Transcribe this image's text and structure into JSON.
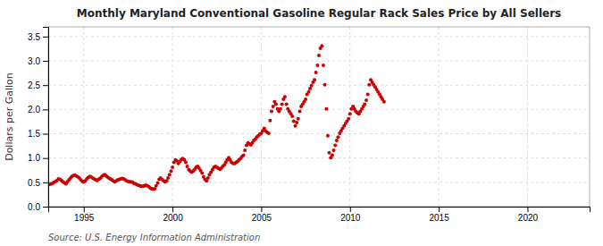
{
  "chart_data": {
    "type": "scatter",
    "title": "Monthly Maryland Conventional Gasoline Regular Rack Sales Price by All Sellers",
    "ylabel": "Dollars per Gallon",
    "source": "Source: U.S. Energy Information Administration",
    "color": "#CC0000",
    "marker": "circle",
    "grid": true,
    "xlim": [
      1993.0,
      2023.5
    ],
    "ylim": [
      0.0,
      3.7
    ],
    "xticks": [
      1995,
      2000,
      2005,
      2010,
      2015,
      2020
    ],
    "yticks": [
      {
        "value": 0.0,
        "label": "0.0"
      },
      0.5,
      {
        "value": 1.0,
        "label": "1.0"
      },
      1.5,
      {
        "value": 2.0,
        "label": "2.0"
      },
      2.5,
      {
        "value": 3.0,
        "label": "3.0"
      },
      3.5
    ],
    "x": [
      1993.08,
      1993.17,
      1993.25,
      1993.33,
      1993.42,
      1993.5,
      1993.58,
      1993.67,
      1993.75,
      1993.83,
      1993.92,
      1994.0,
      1994.08,
      1994.17,
      1994.25,
      1994.33,
      1994.42,
      1994.5,
      1994.58,
      1994.67,
      1994.75,
      1994.83,
      1994.92,
      1995.0,
      1995.08,
      1995.17,
      1995.25,
      1995.33,
      1995.42,
      1995.5,
      1995.58,
      1995.67,
      1995.75,
      1995.83,
      1995.92,
      1996.0,
      1996.08,
      1996.17,
      1996.25,
      1996.33,
      1996.42,
      1996.5,
      1996.58,
      1996.67,
      1996.75,
      1996.83,
      1996.92,
      1997.0,
      1997.08,
      1997.17,
      1997.25,
      1997.33,
      1997.42,
      1997.5,
      1997.58,
      1997.67,
      1997.75,
      1997.83,
      1997.92,
      1998.0,
      1998.08,
      1998.17,
      1998.25,
      1998.33,
      1998.42,
      1998.5,
      1998.58,
      1998.67,
      1998.75,
      1998.83,
      1998.92,
      1999.0,
      1999.08,
      1999.17,
      1999.25,
      1999.33,
      1999.42,
      1999.5,
      1999.58,
      1999.67,
      1999.75,
      1999.83,
      1999.92,
      2000.0,
      2000.08,
      2000.17,
      2000.25,
      2000.33,
      2000.42,
      2000.5,
      2000.58,
      2000.67,
      2000.75,
      2000.83,
      2000.92,
      2001.0,
      2001.08,
      2001.17,
      2001.25,
      2001.33,
      2001.42,
      2001.5,
      2001.58,
      2001.67,
      2001.75,
      2001.83,
      2001.92,
      2002.0,
      2002.08,
      2002.17,
      2002.25,
      2002.33,
      2002.42,
      2002.5,
      2002.58,
      2002.67,
      2002.75,
      2002.83,
      2002.92,
      2003.0,
      2003.08,
      2003.17,
      2003.25,
      2003.33,
      2003.42,
      2003.5,
      2003.58,
      2003.67,
      2003.75,
      2003.83,
      2003.92,
      2004.0,
      2004.08,
      2004.17,
      2004.25,
      2004.33,
      2004.42,
      2004.5,
      2004.58,
      2004.67,
      2004.75,
      2004.83,
      2004.92,
      2005.0,
      2005.08,
      2005.17,
      2005.25,
      2005.33,
      2005.42,
      2005.5,
      2005.58,
      2005.67,
      2005.75,
      2005.83,
      2005.92,
      2006.0,
      2006.08,
      2006.17,
      2006.25,
      2006.33,
      2006.42,
      2006.5,
      2006.58,
      2006.67,
      2006.75,
      2006.83,
      2006.92,
      2007.0,
      2007.08,
      2007.17,
      2007.25,
      2007.33,
      2007.42,
      2007.5,
      2007.58,
      2007.67,
      2007.75,
      2007.83,
      2007.92,
      2008.0,
      2008.08,
      2008.17,
      2008.25,
      2008.33,
      2008.42,
      2008.5,
      2008.58,
      2008.67,
      2008.75,
      2008.83,
      2008.92,
      2009.0,
      2009.08,
      2009.17,
      2009.25,
      2009.33,
      2009.42,
      2009.5,
      2009.58,
      2009.67,
      2009.75,
      2009.83,
      2009.92,
      2010.0,
      2010.08,
      2010.17,
      2010.25,
      2010.33,
      2010.42,
      2010.5,
      2010.58,
      2010.67,
      2010.75,
      2010.83,
      2010.92,
      2011.0,
      2011.08,
      2011.17,
      2011.25,
      2011.33,
      2011.42,
      2011.5,
      2011.58,
      2011.67,
      2011.75,
      2011.83,
      2011.92
    ],
    "values": [
      0.46,
      0.47,
      0.48,
      0.5,
      0.52,
      0.54,
      0.57,
      0.56,
      0.54,
      0.51,
      0.49,
      0.47,
      0.51,
      0.55,
      0.59,
      0.62,
      0.64,
      0.65,
      0.63,
      0.61,
      0.59,
      0.55,
      0.52,
      0.51,
      0.53,
      0.57,
      0.6,
      0.62,
      0.61,
      0.59,
      0.57,
      0.55,
      0.54,
      0.56,
      0.58,
      0.61,
      0.64,
      0.66,
      0.64,
      0.61,
      0.59,
      0.57,
      0.55,
      0.53,
      0.51,
      0.53,
      0.55,
      0.56,
      0.57,
      0.58,
      0.57,
      0.55,
      0.53,
      0.52,
      0.51,
      0.51,
      0.5,
      0.48,
      0.47,
      0.45,
      0.44,
      0.43,
      0.42,
      0.42,
      0.43,
      0.44,
      0.43,
      0.41,
      0.38,
      0.37,
      0.36,
      0.37,
      0.43,
      0.49,
      0.56,
      0.59,
      0.56,
      0.53,
      0.51,
      0.53,
      0.59,
      0.66,
      0.73,
      0.81,
      0.91,
      0.96,
      0.94,
      0.89,
      0.93,
      0.97,
      0.99,
      0.96,
      0.91,
      0.83,
      0.76,
      0.73,
      0.71,
      0.73,
      0.77,
      0.81,
      0.83,
      0.79,
      0.74,
      0.69,
      0.61,
      0.56,
      0.53,
      0.59,
      0.66,
      0.71,
      0.76,
      0.81,
      0.83,
      0.81,
      0.79,
      0.77,
      0.79,
      0.83,
      0.86,
      0.91,
      0.96,
      1.01,
      0.96,
      0.91,
      0.89,
      0.89,
      0.91,
      0.93,
      0.96,
      0.99,
      1.03,
      1.06,
      1.16,
      1.26,
      1.31,
      1.29,
      1.27,
      1.31,
      1.36,
      1.39,
      1.43,
      1.46,
      1.49,
      1.51,
      1.56,
      1.61,
      1.56,
      1.53,
      1.51,
      1.77,
      1.96,
      2.06,
      2.16,
      2.11,
      2.01,
      1.96,
      2.01,
      2.11,
      2.21,
      2.26,
      2.11,
      2.01,
      1.96,
      1.91,
      1.86,
      1.76,
      1.66,
      1.73,
      1.81,
      1.96,
      2.06,
      2.11,
      2.16,
      2.21,
      2.31,
      2.36,
      2.43,
      2.49,
      2.56,
      2.61,
      2.76,
      2.91,
      3.11,
      3.26,
      3.31,
      2.91,
      2.51,
      2.01,
      1.46,
      1.11,
      1.01,
      1.06,
      1.16,
      1.26,
      1.36,
      1.43,
      1.51,
      1.56,
      1.61,
      1.66,
      1.71,
      1.76,
      1.81,
      1.91,
      2.01,
      2.06,
      2.01,
      1.96,
      1.93,
      1.91,
      1.96,
      2.01,
      2.06,
      2.11,
      2.19,
      2.31,
      2.51,
      2.61,
      2.56,
      2.51,
      2.46,
      2.41,
      2.36,
      2.31,
      2.26,
      2.21,
      2.16
    ]
  }
}
